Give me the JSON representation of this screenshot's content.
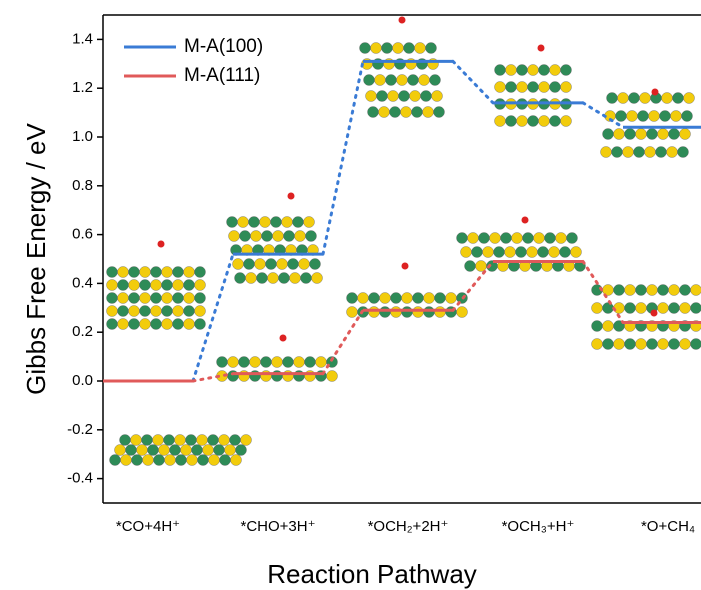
{
  "chart_data": {
    "type": "energy-level",
    "x_label": "Reaction Pathway",
    "y_label": "Gibbs Free Energy / eV",
    "categories": [
      "*CO+4H⁺",
      "*CHO+3H⁺",
      "*OCH₂+2H⁺",
      "*OCH₃+H⁺",
      "*O+CH₄"
    ],
    "series": [
      {
        "name": "M-A(100)",
        "color": "#3a7bd5",
        "values": [
          0,
          0.52,
          1.31,
          1.14,
          1.04
        ]
      },
      {
        "name": "M-A(111)",
        "color": "#e05a5a",
        "values": [
          0,
          0.03,
          0.29,
          0.49,
          0.24
        ]
      }
    ],
    "ylim": [
      -0.5,
      1.5
    ],
    "yticks": [
      -0.4,
      -0.2,
      {
        "value": 0,
        "label": "0.0"
      },
      0.2,
      0.4,
      0.6,
      0.8,
      {
        "value": 1,
        "label": "1.0"
      },
      1.2,
      1.4
    ],
    "legend": "upper left"
  }
}
